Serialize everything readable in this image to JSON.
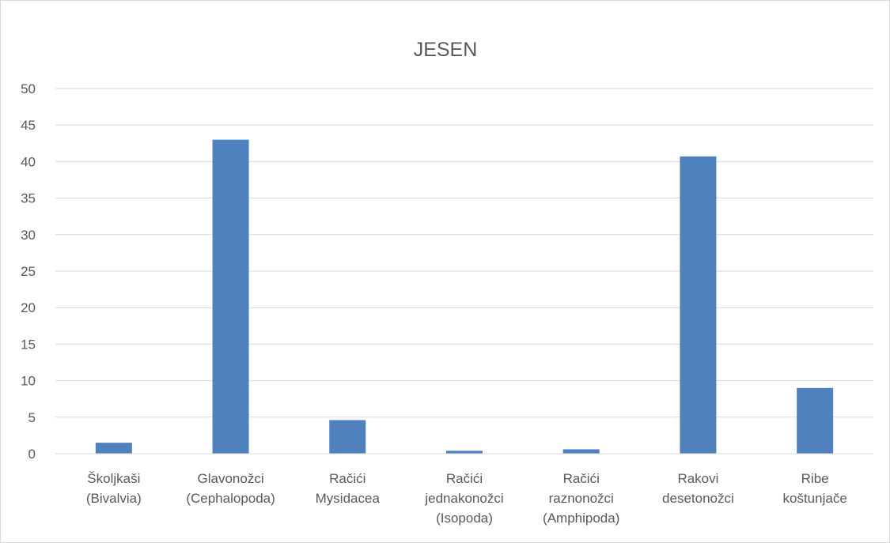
{
  "chart_data": {
    "type": "bar",
    "title": "JESEN",
    "xlabel": "",
    "ylabel": "",
    "ylim": [
      0,
      50
    ],
    "yticks": [
      "0",
      "5",
      "10",
      "15",
      "20",
      "25",
      "30",
      "35",
      "40",
      "45",
      "50"
    ],
    "grid": true,
    "legend": "none",
    "bar_color": "#4f81bd",
    "categories": [
      [
        "Školjkaši",
        "(Bivalvia)"
      ],
      [
        "Glavonožci",
        "(Cephalopoda)"
      ],
      [
        "Račići",
        "Mysidacea"
      ],
      [
        "Račići",
        "jednakonožci",
        "(Isopoda)"
      ],
      [
        "Račići",
        "raznonožci",
        "(Amphipoda)"
      ],
      [
        "Rakovi",
        "desetonožci"
      ],
      [
        "Ribe",
        "koštunjače"
      ]
    ],
    "values": [
      1.5,
      43,
      4.6,
      0.4,
      0.6,
      40.7,
      9
    ]
  }
}
